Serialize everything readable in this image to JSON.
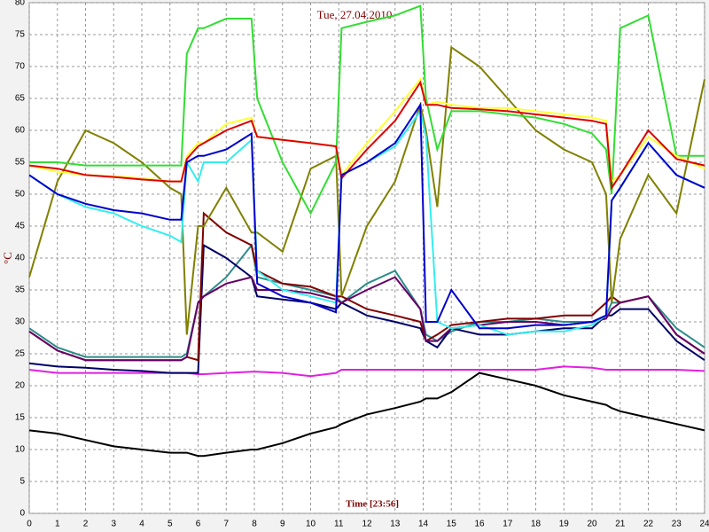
{
  "chart_data": {
    "type": "line",
    "title": "Tue, 27.04.2010",
    "x_label": "Time [23:56]",
    "y_label": "°C",
    "x": [
      0,
      1,
      2,
      3,
      4,
      5,
      5.4,
      5.6,
      6,
      6.2,
      7,
      7.9,
      8.1,
      9,
      10,
      10.9,
      11.1,
      12,
      13,
      13.9,
      14.1,
      14.5,
      15,
      16,
      17,
      18,
      19,
      20,
      20.5,
      20.7,
      21,
      22,
      23,
      24
    ],
    "series": [
      {
        "color": "#000000",
        "values": [
          13,
          12.5,
          11.5,
          10.5,
          10,
          9.5,
          9.5,
          9.5,
          9,
          9,
          9.5,
          10,
          10,
          11,
          12.5,
          13.5,
          14,
          15.5,
          16.5,
          17.5,
          18,
          18,
          19,
          22,
          21,
          20,
          18.5,
          17.5,
          17,
          16.5,
          16,
          15,
          14,
          13
        ]
      },
      {
        "color": "#e020e0",
        "values": [
          22.5,
          22,
          22,
          22,
          22,
          22,
          22,
          22,
          21.8,
          21.8,
          22,
          22.2,
          22.2,
          22,
          21.5,
          22,
          22.5,
          22.5,
          22.5,
          22.5,
          22.5,
          22.5,
          22.5,
          22.5,
          22.5,
          22.5,
          23,
          22.8,
          22.5,
          22.5,
          22.5,
          22.5,
          22.5,
          22.3
        ]
      },
      {
        "color": "#2e8b8b",
        "values": [
          29,
          26,
          24.5,
          24.5,
          24.5,
          24.5,
          24.5,
          25,
          33,
          34,
          37,
          42,
          37,
          36,
          35,
          34,
          33,
          36,
          38,
          32,
          28,
          27,
          28.5,
          30,
          30,
          30.5,
          30,
          30,
          31,
          33,
          33,
          34,
          29,
          26
        ]
      },
      {
        "color": "#000066",
        "values": [
          23.5,
          23,
          22.8,
          22.5,
          22.3,
          22,
          22,
          22,
          22,
          42,
          40,
          37,
          34,
          33.5,
          33,
          32,
          33,
          31,
          30,
          29,
          27,
          26,
          29,
          28,
          28,
          28.5,
          29,
          29,
          31,
          31,
          32,
          32,
          27,
          24
        ]
      },
      {
        "color": "#800000",
        "values": [
          28.5,
          25.5,
          24,
          24,
          24,
          24,
          24,
          24.5,
          24,
          47,
          44,
          42,
          38,
          36,
          35.5,
          34,
          34,
          32,
          31,
          30,
          27,
          28,
          29.5,
          30,
          30.5,
          30.5,
          31,
          31,
          33,
          34,
          33,
          34,
          28,
          25
        ]
      },
      {
        "color": "#660066",
        "values": [
          28.5,
          25.5,
          24,
          24,
          24,
          24,
          24,
          24.5,
          33,
          34,
          36,
          37,
          35,
          35,
          34.5,
          33.5,
          33,
          35,
          37,
          32,
          27,
          27,
          29,
          29.5,
          30,
          30,
          29.5,
          30,
          30.5,
          32,
          33,
          34,
          28,
          25
        ]
      },
      {
        "color": "#808000",
        "values": [
          37,
          52,
          60,
          58,
          55,
          51,
          50,
          28,
          45,
          45,
          51,
          44,
          44,
          41,
          54,
          56,
          34,
          45,
          52,
          64,
          60,
          48,
          73,
          70,
          65,
          60,
          57,
          55,
          50,
          33,
          43,
          53,
          47,
          68
        ]
      },
      {
        "color": "#33dd33",
        "values": [
          55,
          55,
          54.5,
          54.5,
          54.5,
          54.5,
          54.5,
          72,
          76,
          76,
          77.5,
          77.5,
          65,
          55,
          47,
          55,
          76,
          77,
          78,
          79.5,
          65,
          57,
          63,
          63,
          62.5,
          62,
          61,
          59.5,
          57,
          50,
          76,
          78,
          56,
          56
        ]
      },
      {
        "color": "#ffff33",
        "values": [
          54.5,
          53.5,
          53,
          52.8,
          52.5,
          52,
          52,
          56,
          58,
          58,
          61,
          62,
          59,
          58.5,
          58,
          57.5,
          53,
          58,
          63,
          68,
          64,
          64.5,
          64,
          63.5,
          63.5,
          63,
          62.5,
          62,
          61.5,
          52,
          53,
          59,
          56,
          54
        ]
      },
      {
        "color": "#33eeee",
        "values": [
          53,
          50,
          48,
          47,
          45,
          43.5,
          42.5,
          55,
          52,
          55,
          55,
          58.5,
          38,
          35,
          34,
          33,
          53,
          55,
          57.5,
          63,
          59,
          30,
          29,
          29.5,
          28,
          28.5,
          28.5,
          29.5,
          31,
          49,
          51,
          58,
          53,
          51
        ]
      },
      {
        "color": "#dd0000",
        "values": [
          54.5,
          54,
          53,
          52.7,
          52.3,
          52,
          52,
          55.5,
          57.5,
          58,
          60,
          61.5,
          59,
          58.5,
          58,
          57.5,
          52.5,
          57,
          61.5,
          67.5,
          64,
          64,
          63.5,
          63.3,
          63,
          62.5,
          62,
          61.5,
          61,
          51,
          53,
          60,
          55.5,
          54.5
        ]
      },
      {
        "color": "#0000cc",
        "values": [
          53,
          50,
          48.5,
          47.5,
          47,
          46,
          46,
          55,
          56,
          56,
          57,
          59.5,
          36,
          34,
          33,
          31.5,
          53,
          55,
          58,
          64,
          30,
          30,
          35,
          29,
          29,
          29.5,
          29.5,
          30,
          31,
          49,
          51,
          58,
          53,
          51
        ]
      }
    ],
    "xlim": [
      0,
      24
    ],
    "xticks": [
      0,
      1,
      2,
      3,
      4,
      5,
      6,
      7,
      8,
      9,
      10,
      11,
      12,
      13,
      14,
      15,
      16,
      17,
      18,
      19,
      20,
      21,
      22,
      23,
      24
    ],
    "ylim": [
      0,
      80
    ],
    "yticks": [
      0,
      5,
      10,
      15,
      20,
      25,
      30,
      35,
      40,
      45,
      50,
      55,
      60,
      65,
      70,
      75,
      80
    ],
    "grid": true
  }
}
